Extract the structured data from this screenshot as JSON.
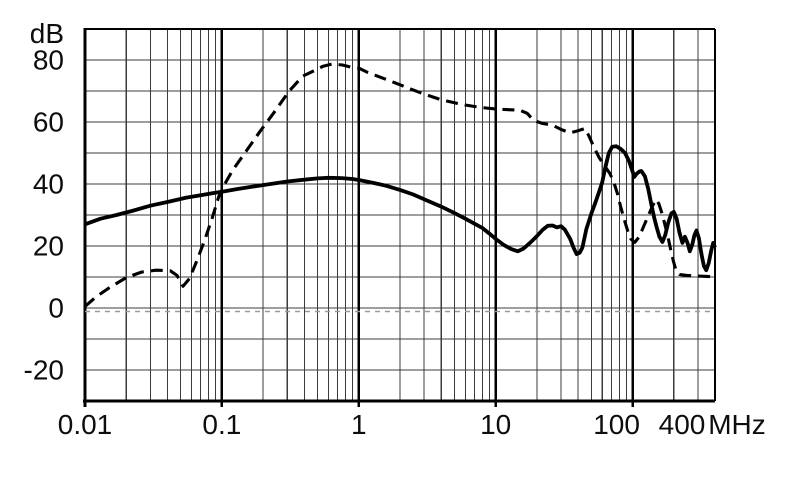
{
  "chart_data": {
    "type": "line",
    "title": "",
    "x_axis": {
      "unit_label": "MHz",
      "scale": "log",
      "min": 0.01,
      "max": 400,
      "tick_labels": [
        "0.01",
        "0.1",
        "1",
        "10",
        "100",
        "400"
      ],
      "tick_values": [
        0.01,
        0.1,
        1,
        10,
        100,
        400
      ],
      "grid": "log-minor-lines"
    },
    "y_axis": {
      "unit_label": "dB",
      "min": -30,
      "max": 90,
      "grid_step": 10,
      "tick_labels": [
        "80",
        "60",
        "40",
        "20",
        "0",
        "-20"
      ],
      "tick_values": [
        80,
        60,
        40,
        20,
        0,
        -20
      ]
    },
    "reference_line": {
      "value": 0,
      "color": "#999999",
      "style": "dashed"
    },
    "legend": "none",
    "series": [
      {
        "name": "dashed-curve",
        "line_style": "dashed",
        "color": "#000000",
        "points": [
          [
            0.01,
            0.5
          ],
          [
            0.012,
            3.5
          ],
          [
            0.015,
            6.5
          ],
          [
            0.02,
            9.8
          ],
          [
            0.026,
            11.6
          ],
          [
            0.033,
            12.2
          ],
          [
            0.042,
            12
          ],
          [
            0.047,
            10.5
          ],
          [
            0.052,
            7
          ],
          [
            0.058,
            9.5
          ],
          [
            0.066,
            15.5
          ],
          [
            0.075,
            22
          ],
          [
            0.085,
            29
          ],
          [
            0.095,
            36
          ],
          [
            0.105,
            40
          ],
          [
            0.12,
            44.5
          ],
          [
            0.15,
            50.5
          ],
          [
            0.19,
            57
          ],
          [
            0.24,
            63
          ],
          [
            0.31,
            70
          ],
          [
            0.39,
            74.8
          ],
          [
            0.47,
            76.5
          ],
          [
            0.55,
            78
          ],
          [
            0.64,
            78.7
          ],
          [
            0.76,
            78.4
          ],
          [
            0.87,
            77.7
          ],
          [
            1,
            77.4
          ],
          [
            1.16,
            76
          ],
          [
            1.45,
            74.4
          ],
          [
            1.8,
            72.8
          ],
          [
            2.4,
            70.6
          ],
          [
            3,
            69
          ],
          [
            4,
            67.2
          ],
          [
            5,
            66.2
          ],
          [
            6,
            65.5
          ],
          [
            7,
            65
          ],
          [
            8.5,
            64.5
          ],
          [
            10,
            64.2
          ],
          [
            12,
            64
          ],
          [
            15,
            63.8
          ],
          [
            17,
            62.8
          ],
          [
            19,
            60.5
          ],
          [
            22,
            59.5
          ],
          [
            26,
            59
          ],
          [
            30,
            57.6
          ],
          [
            35,
            56.5
          ],
          [
            40,
            57.2
          ],
          [
            45,
            57.9
          ],
          [
            48,
            55.5
          ],
          [
            52,
            52
          ],
          [
            57,
            48.5
          ],
          [
            62,
            46
          ],
          [
            68,
            43.5
          ],
          [
            73,
            40.5
          ],
          [
            78,
            36.5
          ],
          [
            82,
            32.5
          ],
          [
            87,
            28.5
          ],
          [
            92,
            25
          ],
          [
            97,
            22.3
          ],
          [
            104,
            21.2
          ],
          [
            112,
            23
          ],
          [
            121,
            26.5
          ],
          [
            131,
            30
          ],
          [
            140,
            33
          ],
          [
            149,
            35
          ],
          [
            156,
            33.5
          ],
          [
            164,
            30.5
          ],
          [
            172,
            27
          ],
          [
            181,
            23
          ],
          [
            190,
            18.8
          ],
          [
            199,
            15
          ],
          [
            208,
            12
          ],
          [
            220,
            10.8
          ],
          [
            250,
            10.5
          ],
          [
            300,
            10.3
          ],
          [
            350,
            10.2
          ],
          [
            400,
            10
          ]
        ]
      },
      {
        "name": "solid-curve",
        "line_style": "solid",
        "color": "#000000",
        "points": [
          [
            0.01,
            27
          ],
          [
            0.013,
            28.8
          ],
          [
            0.017,
            30
          ],
          [
            0.022,
            31.3
          ],
          [
            0.03,
            33
          ],
          [
            0.04,
            34.2
          ],
          [
            0.055,
            35.6
          ],
          [
            0.07,
            36.4
          ],
          [
            0.085,
            37
          ],
          [
            0.1,
            37.5
          ],
          [
            0.13,
            38.4
          ],
          [
            0.17,
            39.2
          ],
          [
            0.22,
            39.9
          ],
          [
            0.3,
            40.8
          ],
          [
            0.4,
            41.4
          ],
          [
            0.5,
            41.8
          ],
          [
            0.6,
            42
          ],
          [
            0.75,
            41.9
          ],
          [
            0.9,
            41.6
          ],
          [
            1,
            41.3
          ],
          [
            1.3,
            40.3
          ],
          [
            1.6,
            39.4
          ],
          [
            2,
            38.1
          ],
          [
            2.5,
            36.6
          ],
          [
            3,
            35.1
          ],
          [
            4,
            32.7
          ],
          [
            5,
            30.6
          ],
          [
            6,
            28.8
          ],
          [
            7,
            27.2
          ],
          [
            8,
            25.8
          ],
          [
            9,
            24
          ],
          [
            10,
            22.3
          ],
          [
            11.5,
            20.3
          ],
          [
            13,
            19
          ],
          [
            14.5,
            18.3
          ],
          [
            16,
            19.2
          ],
          [
            18,
            21.2
          ],
          [
            20,
            23.2
          ],
          [
            22,
            25.2
          ],
          [
            24,
            26.5
          ],
          [
            26,
            26.6
          ],
          [
            28,
            26
          ],
          [
            30,
            26.4
          ],
          [
            32,
            25.3
          ],
          [
            35,
            22.3
          ],
          [
            37,
            19.5
          ],
          [
            39,
            17.4
          ],
          [
            41,
            17.8
          ],
          [
            43,
            19.5
          ],
          [
            46,
            25.5
          ],
          [
            50,
            30.5
          ],
          [
            53,
            33.5
          ],
          [
            56,
            36.5
          ],
          [
            60,
            40.5
          ],
          [
            63,
            45
          ],
          [
            67,
            50
          ],
          [
            71,
            52
          ],
          [
            76,
            52.2
          ],
          [
            82,
            51.3
          ],
          [
            88,
            50
          ],
          [
            94,
            47.5
          ],
          [
            100,
            44
          ],
          [
            103,
            42.3
          ],
          [
            107,
            43.3
          ],
          [
            112,
            44
          ],
          [
            116,
            44.2
          ],
          [
            123,
            42.5
          ],
          [
            130,
            38.5
          ],
          [
            137,
            33.5
          ],
          [
            144,
            29
          ],
          [
            150,
            26
          ],
          [
            157,
            23
          ],
          [
            165,
            21.3
          ],
          [
            173,
            23.5
          ],
          [
            182,
            27.5
          ],
          [
            192,
            30.5
          ],
          [
            200,
            31
          ],
          [
            210,
            28.7
          ],
          [
            220,
            24.3
          ],
          [
            231,
            21
          ],
          [
            241,
            23
          ],
          [
            252,
            21
          ],
          [
            262,
            18.3
          ],
          [
            273,
            20.5
          ],
          [
            283,
            23.5
          ],
          [
            293,
            25
          ],
          [
            305,
            22.5
          ],
          [
            318,
            17.5
          ],
          [
            332,
            13.5
          ],
          [
            345,
            12.2
          ],
          [
            360,
            14.5
          ],
          [
            375,
            18.5
          ],
          [
            388,
            21
          ],
          [
            400,
            19.5
          ]
        ]
      }
    ],
    "colors": {
      "background": "#ffffff",
      "axis": "#000000",
      "grid_minor": "#3c3c3c",
      "grid_major": "#000000",
      "text": "#0d0d0d",
      "reference": "#999999"
    }
  }
}
